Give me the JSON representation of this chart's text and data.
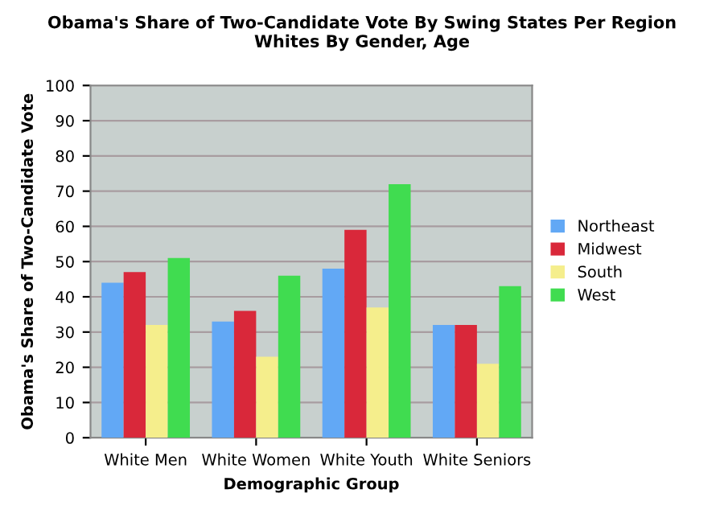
{
  "chart_data": {
    "type": "bar",
    "title": "Obama's Share of Two-Candidate Vote By Swing States Per Region\nWhites By Gender, Age",
    "xlabel": "Demographic Group",
    "ylabel": "Obama's Share of Two-Candidate Vote",
    "categories": [
      "White Men",
      "White Women",
      "White Youth",
      "White Seniors"
    ],
    "series": [
      {
        "name": "Northeast",
        "color": "#62a8f5",
        "values": [
          44,
          33,
          48,
          32
        ]
      },
      {
        "name": "Midwest",
        "color": "#d9283a",
        "values": [
          47,
          36,
          59,
          32
        ]
      },
      {
        "name": "South",
        "color": "#f5ee8c",
        "values": [
          32,
          23,
          37,
          21
        ]
      },
      {
        "name": "West",
        "color": "#40dc50",
        "values": [
          51,
          46,
          72,
          43
        ]
      }
    ],
    "ylim": [
      0,
      100
    ],
    "yticks": [
      0,
      10,
      20,
      30,
      40,
      50,
      60,
      70,
      80,
      90,
      100
    ],
    "grid": "y",
    "legend": "right"
  }
}
